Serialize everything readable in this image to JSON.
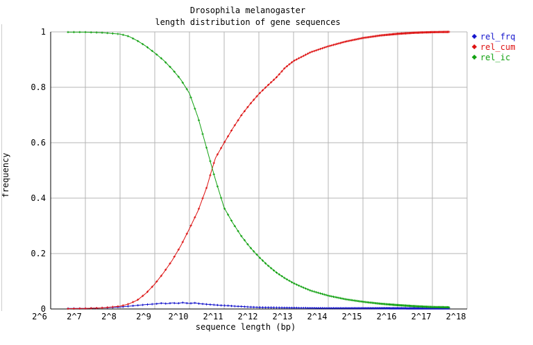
{
  "window": {
    "background": "#ffffff",
    "frame_line_color": "#cccccc"
  },
  "chart": {
    "title_line1": "Drosophila melanogaster",
    "title_line2": "length distribution of gene sequences",
    "xlabel": "sequence length (bp)",
    "ylabel": "frequency",
    "x_ticks": [
      {
        "power": 6,
        "label": "2^6"
      },
      {
        "power": 7,
        "label": "2^7"
      },
      {
        "power": 8,
        "label": "2^8"
      },
      {
        "power": 9,
        "label": "2^9"
      },
      {
        "power": 10,
        "label": "2^10"
      },
      {
        "power": 11,
        "label": "2^11"
      },
      {
        "power": 12,
        "label": "2^12"
      },
      {
        "power": 13,
        "label": "2^13"
      },
      {
        "power": 14,
        "label": "2^14"
      },
      {
        "power": 15,
        "label": "2^15"
      },
      {
        "power": 16,
        "label": "2^16"
      },
      {
        "power": 17,
        "label": "2^17"
      },
      {
        "power": 18,
        "label": "2^18"
      }
    ],
    "y_ticks": [
      {
        "value": 0,
        "label": "0"
      },
      {
        "value": 0.2,
        "label": "0.2"
      },
      {
        "value": 0.4,
        "label": "0.4"
      },
      {
        "value": 0.6,
        "label": "0.6"
      },
      {
        "value": 0.8,
        "label": "0.8"
      },
      {
        "value": 1,
        "label": "1"
      }
    ],
    "colors": {
      "grid": "#b4b4b4",
      "axis": "#000000",
      "rel_frq": "#1414cc",
      "rel_cum": "#dd1111",
      "rel_ic": "#11a111"
    },
    "legend": [
      {
        "label": "rel_frq",
        "series": "rel_frq"
      },
      {
        "label": "rel_cum",
        "series": "rel_cum"
      },
      {
        "label": "rel_ic",
        "series": "rel_ic"
      }
    ]
  },
  "chart_data": {
    "type": "line",
    "title": "Drosophila melanogaster length distribution of gene sequences",
    "xlabel": "sequence length (bp)",
    "ylabel": "frequency",
    "x_scale": "log2",
    "x_range_log2": [
      6,
      18
    ],
    "ylim": [
      0,
      1
    ],
    "grid": true,
    "legend_position": "top-right-outside",
    "marker": "plus",
    "series": [
      {
        "name": "rel_frq",
        "color": "#1414cc",
        "points_log2x": [
          [
            6.5,
            0.002
          ],
          [
            7,
            0.002
          ],
          [
            7.5,
            0.004
          ],
          [
            8,
            0.007
          ],
          [
            8.25,
            0.01
          ],
          [
            8.5,
            0.013
          ],
          [
            8.75,
            0.016
          ],
          [
            9,
            0.018
          ],
          [
            9.2,
            0.021
          ],
          [
            9.35,
            0.019
          ],
          [
            9.5,
            0.022
          ],
          [
            9.65,
            0.02
          ],
          [
            9.8,
            0.023
          ],
          [
            10,
            0.02
          ],
          [
            10.15,
            0.022
          ],
          [
            10.3,
            0.019
          ],
          [
            10.5,
            0.017
          ],
          [
            10.7,
            0.015
          ],
          [
            10.9,
            0.013
          ],
          [
            11.1,
            0.012
          ],
          [
            11.3,
            0.01
          ],
          [
            11.5,
            0.009
          ],
          [
            11.75,
            0.007
          ],
          [
            12,
            0.006
          ],
          [
            12.5,
            0.005
          ],
          [
            13,
            0.004
          ],
          [
            13.5,
            0.0035
          ],
          [
            14,
            0.003
          ],
          [
            15,
            0.003
          ],
          [
            16,
            0.0025
          ],
          [
            17,
            0.002
          ],
          [
            17.5,
            0.002
          ]
        ]
      },
      {
        "name": "rel_cum",
        "color": "#dd1111",
        "points_log2x": [
          [
            6.5,
            0.001
          ],
          [
            7,
            0.002
          ],
          [
            7.5,
            0.004
          ],
          [
            8,
            0.01
          ],
          [
            8.25,
            0.018
          ],
          [
            8.5,
            0.032
          ],
          [
            8.75,
            0.057
          ],
          [
            9,
            0.09
          ],
          [
            9.25,
            0.13
          ],
          [
            9.5,
            0.175
          ],
          [
            9.75,
            0.228
          ],
          [
            10,
            0.29
          ],
          [
            10.25,
            0.355
          ],
          [
            10.5,
            0.44
          ],
          [
            10.65,
            0.505
          ],
          [
            10.75,
            0.545
          ],
          [
            11,
            0.6
          ],
          [
            11.25,
            0.652
          ],
          [
            11.5,
            0.7
          ],
          [
            11.75,
            0.74
          ],
          [
            12,
            0.776
          ],
          [
            12.25,
            0.806
          ],
          [
            12.5,
            0.835
          ],
          [
            12.75,
            0.87
          ],
          [
            13,
            0.895
          ],
          [
            13.5,
            0.927
          ],
          [
            14,
            0.948
          ],
          [
            14.5,
            0.965
          ],
          [
            15,
            0.978
          ],
          [
            15.5,
            0.987
          ],
          [
            16,
            0.993
          ],
          [
            16.5,
            0.997
          ],
          [
            17,
            0.999
          ],
          [
            17.5,
            1.0
          ]
        ]
      },
      {
        "name": "rel_ic",
        "color": "#11a111",
        "points_log2x": [
          [
            6.5,
            0.999
          ],
          [
            7,
            0.999
          ],
          [
            7.5,
            0.997
          ],
          [
            8,
            0.992
          ],
          [
            8.25,
            0.984
          ],
          [
            8.5,
            0.968
          ],
          [
            8.75,
            0.948
          ],
          [
            9,
            0.924
          ],
          [
            9.25,
            0.898
          ],
          [
            9.5,
            0.866
          ],
          [
            9.75,
            0.828
          ],
          [
            10,
            0.778
          ],
          [
            10.25,
            0.69
          ],
          [
            10.5,
            0.578
          ],
          [
            10.65,
            0.51
          ],
          [
            10.75,
            0.466
          ],
          [
            11,
            0.365
          ],
          [
            11.25,
            0.31
          ],
          [
            11.5,
            0.262
          ],
          [
            11.75,
            0.222
          ],
          [
            12,
            0.188
          ],
          [
            12.25,
            0.158
          ],
          [
            12.5,
            0.132
          ],
          [
            12.75,
            0.111
          ],
          [
            13,
            0.093
          ],
          [
            13.25,
            0.079
          ],
          [
            13.5,
            0.066
          ],
          [
            14,
            0.048
          ],
          [
            14.5,
            0.035
          ],
          [
            15,
            0.026
          ],
          [
            15.5,
            0.019
          ],
          [
            16,
            0.014
          ],
          [
            16.5,
            0.01
          ],
          [
            17,
            0.007
          ],
          [
            17.5,
            0.006
          ]
        ]
      }
    ]
  }
}
